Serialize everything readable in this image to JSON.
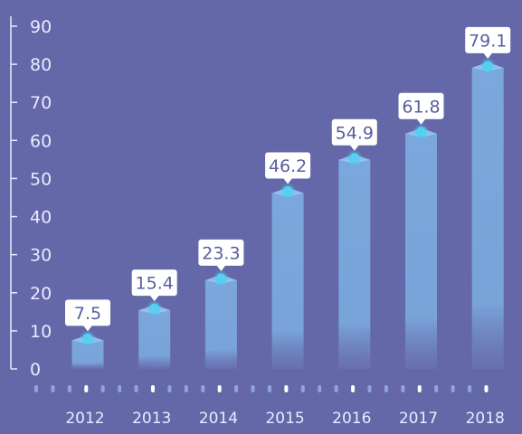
{
  "colors": {
    "background": "#6468a8",
    "axis": "#e9ebff",
    "bar_top": "#7aa7dd",
    "bar_bottom": "#6b73b5",
    "bar_cap": "#9cc4ee",
    "marker": "#49d3f2",
    "label_bg": "#ffffff",
    "label_text": "#5a5e9e",
    "dot_minor": "#8ea4df",
    "dot_major": "#ffffff"
  },
  "chart_data": {
    "type": "bar",
    "categories": [
      "2012",
      "2013",
      "2014",
      "2015",
      "2016",
      "2017",
      "2018"
    ],
    "series": [
      {
        "values": [
          7.5,
          15.4,
          23.3,
          46.2,
          54.9,
          61.8,
          79.1
        ]
      }
    ],
    "value_labels": [
      "7.5",
      "15.4",
      "23.3",
      "46.2",
      "54.9",
      "61.8",
      "79.1"
    ],
    "y_ticks": [
      0,
      10,
      20,
      30,
      40,
      50,
      60,
      70,
      80,
      90
    ],
    "y_tick_labels": [
      "0",
      "10",
      "20",
      "30",
      "40",
      "50",
      "60",
      "70",
      "80",
      "90"
    ],
    "ylim": [
      0,
      90
    ],
    "grid": false,
    "legend": "none",
    "title": "",
    "xlabel": "",
    "ylabel": ""
  }
}
